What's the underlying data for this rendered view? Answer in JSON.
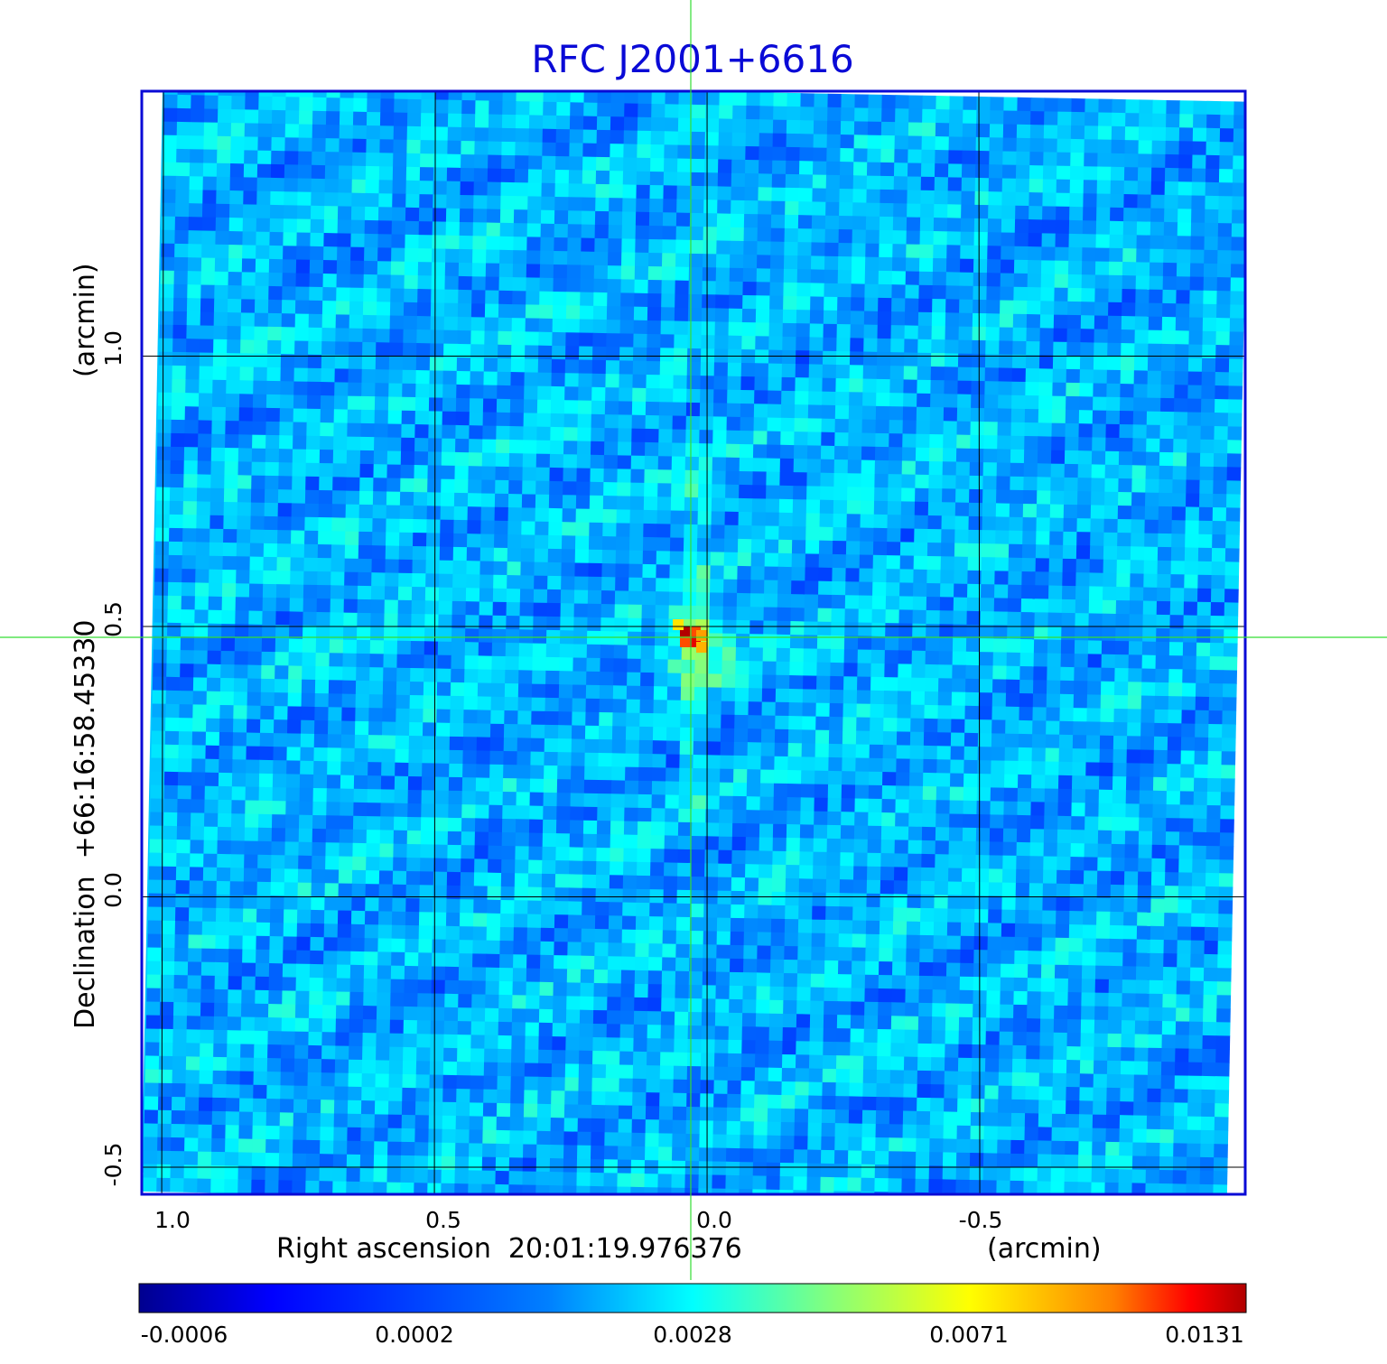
{
  "chart_data": {
    "type": "heatmap",
    "title": "RFC J2001+6616",
    "xlabel": "Right ascension  20:01:19.976376",
    "xunit": "(arcmin)",
    "ylabel": "Declination  +66:16:58.45330",
    "yunit": "(arcmin)",
    "x_ticks": [
      "1.0",
      "0.5",
      "0.0",
      "-0.5"
    ],
    "y_ticks": [
      "1.0",
      "0.5",
      "0.0",
      "-0.5"
    ],
    "x_range": [
      1.04,
      -0.99
    ],
    "y_range": [
      -0.55,
      1.49
    ],
    "grid": true,
    "crosshair": {
      "x": 0.03,
      "y": 0.48
    },
    "peak": {
      "x": 0.03,
      "y": 0.48,
      "value": 0.0131
    },
    "colorbar": {
      "ticks": [
        "-0.0006",
        "0.0002",
        "0.0028",
        "0.0071",
        "0.0131"
      ],
      "min": -0.0006,
      "max": 0.0131,
      "colormap": "jet"
    },
    "colors": {
      "title": "#0a0ad6",
      "frame": "#0a0ad6",
      "crosshair": "#33dd33",
      "grid": "#000000"
    }
  }
}
